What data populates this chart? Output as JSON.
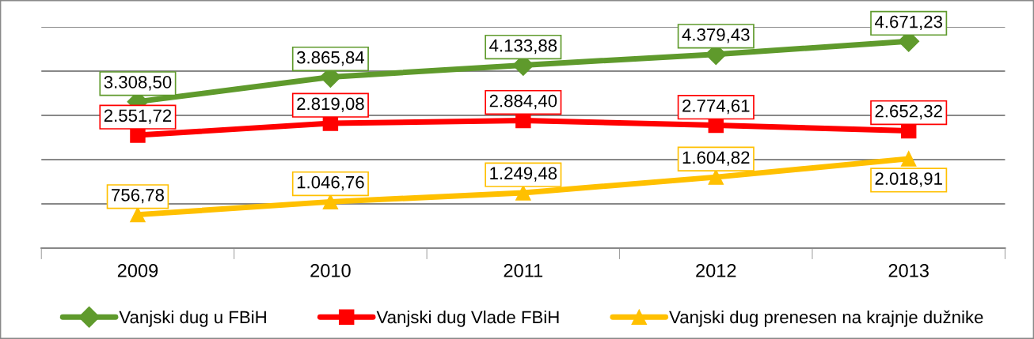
{
  "chart_data": {
    "type": "line",
    "categories": [
      "2009",
      "2010",
      "2011",
      "2012",
      "2013"
    ],
    "ylim": [
      0,
      5000
    ],
    "yticks": [
      {
        "value": 0,
        "label": null
      },
      {
        "value": 1000,
        "label": null
      },
      {
        "value": 2000,
        "label": null
      },
      {
        "value": 3000,
        "label": null
      },
      {
        "value": 4000,
        "label": null
      },
      {
        "value": 5000,
        "label": null
      }
    ],
    "tick_labels": "x",
    "grid": "y",
    "legend": "bottom",
    "line_style": "solid",
    "series": [
      {
        "name": "Vanjski dug u FBiH",
        "color": "#5f9a2c",
        "marker": "diamond",
        "values": [
          3308.5,
          3865.84,
          4133.88,
          4379.43,
          4671.23
        ],
        "value_labels": [
          "3.308,50",
          "3.865,84",
          "4.133,88",
          "4.379,43",
          "4.671,23"
        ]
      },
      {
        "name": "Vanjski dug Vlade FBiH",
        "color": "#ff0000",
        "marker": "square",
        "values": [
          2551.72,
          2819.08,
          2884.4,
          2774.61,
          2652.32
        ],
        "value_labels": [
          "2.551,72",
          "2.819,08",
          "2.884,40",
          "2.774,61",
          "2.652,32"
        ]
      },
      {
        "name": "Vanjski dug prenesen na krajnje dužnike",
        "color": "#ffc000",
        "marker": "triangle",
        "values": [
          756.78,
          1046.76,
          1249.48,
          1604.82,
          2018.91
        ],
        "value_labels": [
          "756,78",
          "1.046,76",
          "1.249,48",
          "1.604,82",
          "2.018,91"
        ]
      }
    ]
  }
}
